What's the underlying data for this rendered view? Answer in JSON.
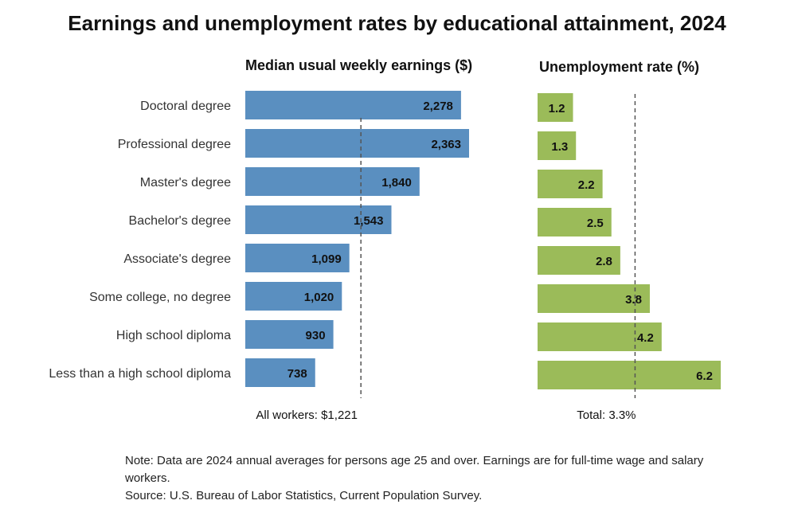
{
  "title": "Earnings and unemployment rates by educational attainment, 2024",
  "colors": {
    "earnings_bar": "#5a8fc0",
    "unemployment_bar": "#9bbb59",
    "reference_line": "#555555"
  },
  "chart_data": [
    {
      "type": "bar",
      "orientation": "horizontal",
      "title": "Median usual weekly earnings ($)",
      "categories": [
        "Doctoral degree",
        "Professional degree",
        "Master's degree",
        "Bachelor's degree",
        "Associate's degree",
        "Some college, no degree",
        "High school diploma",
        "Less than a high school diploma"
      ],
      "values": [
        2278,
        2363,
        1840,
        1543,
        1099,
        1020,
        930,
        738
      ],
      "value_labels": [
        "2,278",
        "2,363",
        "1,840",
        "1,543",
        "1,099",
        "1,020",
        "930",
        "738"
      ],
      "reference": {
        "value": 1221,
        "label": "All workers: $1,221"
      },
      "xlim": [
        0,
        2500
      ]
    },
    {
      "type": "bar",
      "orientation": "horizontal",
      "title": "Unemployment rate (%)",
      "categories": [
        "Doctoral degree",
        "Professional degree",
        "Master's degree",
        "Bachelor's degree",
        "Associate's degree",
        "Some college, no degree",
        "High school diploma",
        "Less than a high school diploma"
      ],
      "values": [
        1.2,
        1.3,
        2.2,
        2.5,
        2.8,
        3.8,
        4.2,
        6.2
      ],
      "value_labels": [
        "1.2",
        "1.3",
        "2.2",
        "2.5",
        "2.8",
        "3.8",
        "4.2",
        "6.2"
      ],
      "reference": {
        "value": 3.3,
        "label": "Total: 3.3%"
      },
      "xlim": [
        0,
        6.5
      ]
    }
  ],
  "note": {
    "line1": "Note: Data are 2024 annual averages for persons age 25 and over. Earnings are for full-time wage and salary workers.",
    "line2": "Source: U.S. Bureau of Labor Statistics, Current Population Survey."
  }
}
